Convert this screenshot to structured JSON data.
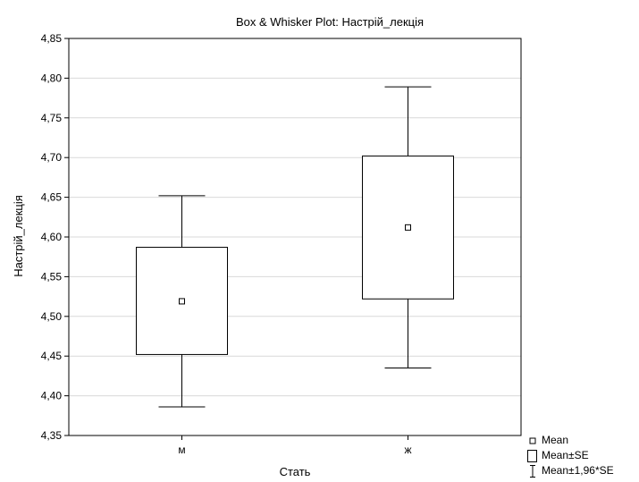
{
  "chart_data": {
    "type": "box",
    "title": "Box & Whisker Plot: Настрій_лекція",
    "xlabel": "Стать",
    "ylabel": "Настрій_лекція",
    "categories": [
      "м",
      "ж"
    ],
    "ylim": [
      4.35,
      4.85
    ],
    "yticks": [
      "4,35",
      "4,40",
      "4,45",
      "4,50",
      "4,55",
      "4,60",
      "4,65",
      "4,70",
      "4,75",
      "4,80",
      "4,85"
    ],
    "grid": true,
    "legend_position": "bottom-right",
    "series": [
      {
        "category": "м",
        "mean": 4.519,
        "se_low": 4.452,
        "se_high": 4.587,
        "ci_low": 4.386,
        "ci_high": 4.652
      },
      {
        "category": "ж",
        "mean": 4.612,
        "se_low": 4.522,
        "se_high": 4.702,
        "ci_low": 4.435,
        "ci_high": 4.789
      }
    ],
    "legend": [
      "Mean",
      "Mean±SE",
      "Mean±1,96*SE"
    ]
  }
}
